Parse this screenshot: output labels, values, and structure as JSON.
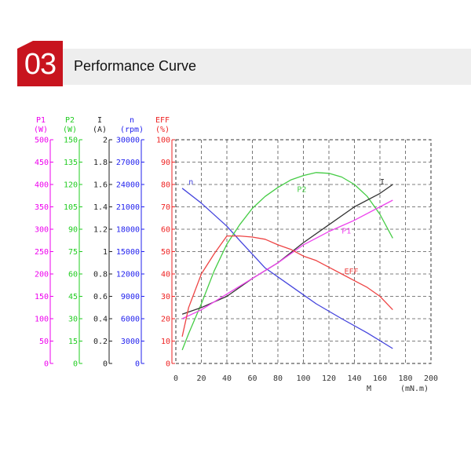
{
  "header": {
    "number": "03",
    "title": "Performance Curve"
  },
  "colors": {
    "badge": "#c8141e",
    "band": "#eeeeee"
  },
  "chart_data": {
    "type": "line",
    "x_axis": {
      "label": "M",
      "unit": "(mN.m)",
      "range": [
        0,
        200
      ],
      "ticks": [
        0,
        20,
        40,
        60,
        80,
        100,
        120,
        140,
        160,
        180,
        200
      ]
    },
    "grid": true,
    "y_axes": [
      {
        "key": "P1",
        "title": "P1",
        "unit": "(W)",
        "color": "#ee00ee",
        "range": [
          0,
          500
        ],
        "ticks": [
          0,
          50,
          100,
          150,
          200,
          250,
          300,
          350,
          400,
          450,
          500
        ]
      },
      {
        "key": "P2",
        "title": "P2",
        "unit": "(W)",
        "color": "#22cc22",
        "range": [
          0,
          150
        ],
        "ticks": [
          0,
          15,
          30,
          45,
          60,
          75,
          90,
          105,
          120,
          135,
          150
        ]
      },
      {
        "key": "I",
        "title": "I",
        "unit": "(A)",
        "color": "#222222",
        "range": [
          0,
          2
        ],
        "ticks": [
          "0",
          "0.2",
          "0.4",
          "0.6",
          "0.8",
          "1",
          "1.2",
          "1.4",
          "1.6",
          "1.8",
          "2"
        ]
      },
      {
        "key": "n",
        "title": "n",
        "unit": "(rpm)",
        "color": "#2222ee",
        "range": [
          0,
          30000
        ],
        "ticks": [
          0,
          3000,
          6000,
          9000,
          12000,
          15000,
          18000,
          21000,
          24000,
          27000,
          30000
        ]
      },
      {
        "key": "EFF",
        "title": "EFF",
        "unit": "(%)",
        "color": "#ee2222",
        "range": [
          0,
          100
        ],
        "ticks": [
          0,
          10,
          20,
          30,
          40,
          50,
          60,
          70,
          80,
          90,
          100
        ]
      }
    ],
    "series": [
      {
        "name": "n",
        "axis": "n",
        "color": "#4444dd",
        "label_at": [
          10,
          24000
        ],
        "x": [
          5,
          20,
          40,
          50,
          70,
          90,
          110,
          130,
          150,
          170
        ],
        "y": [
          23500,
          21500,
          18400,
          16500,
          12800,
          10400,
          8000,
          6000,
          4100,
          2000
        ]
      },
      {
        "name": "P2",
        "axis": "P2",
        "color": "#44cc44",
        "label_at": [
          95,
          115
        ],
        "x": [
          5,
          10,
          20,
          30,
          40,
          50,
          60,
          70,
          80,
          90,
          100,
          110,
          120,
          130,
          140,
          150,
          160,
          170
        ],
        "y": [
          9,
          20,
          40,
          62,
          80,
          93,
          104,
          112,
          118,
          123,
          126,
          128,
          127.5,
          125,
          120,
          112,
          100,
          84
        ]
      },
      {
        "name": "I",
        "axis": "I",
        "color": "#333333",
        "label_at": [
          160,
          1.6
        ],
        "x": [
          5,
          20,
          40,
          60,
          80,
          100,
          120,
          140,
          160,
          170
        ],
        "y": [
          0.44,
          0.5,
          0.6,
          0.76,
          0.9,
          1.08,
          1.24,
          1.4,
          1.52,
          1.6
        ]
      },
      {
        "name": "P1",
        "axis": "P1",
        "color": "#ee44ee",
        "label_at": [
          130,
          290
        ],
        "x": [
          5,
          20,
          40,
          60,
          80,
          100,
          120,
          140,
          160,
          170
        ],
        "y": [
          100,
          120,
          155,
          190,
          225,
          265,
          295,
          320,
          350,
          365
        ]
      },
      {
        "name": "EFF",
        "axis": "EFF",
        "color": "#ee4444",
        "label_at": [
          132,
          40
        ],
        "x": [
          5,
          10,
          20,
          30,
          40,
          50,
          60,
          70,
          80,
          90,
          100,
          110,
          120,
          130,
          140,
          150,
          160,
          170
        ],
        "y": [
          12,
          25,
          40,
          49,
          57,
          57,
          56.5,
          55.5,
          53,
          51,
          48,
          46,
          43,
          40,
          37,
          34,
          30,
          24
        ]
      }
    ]
  }
}
